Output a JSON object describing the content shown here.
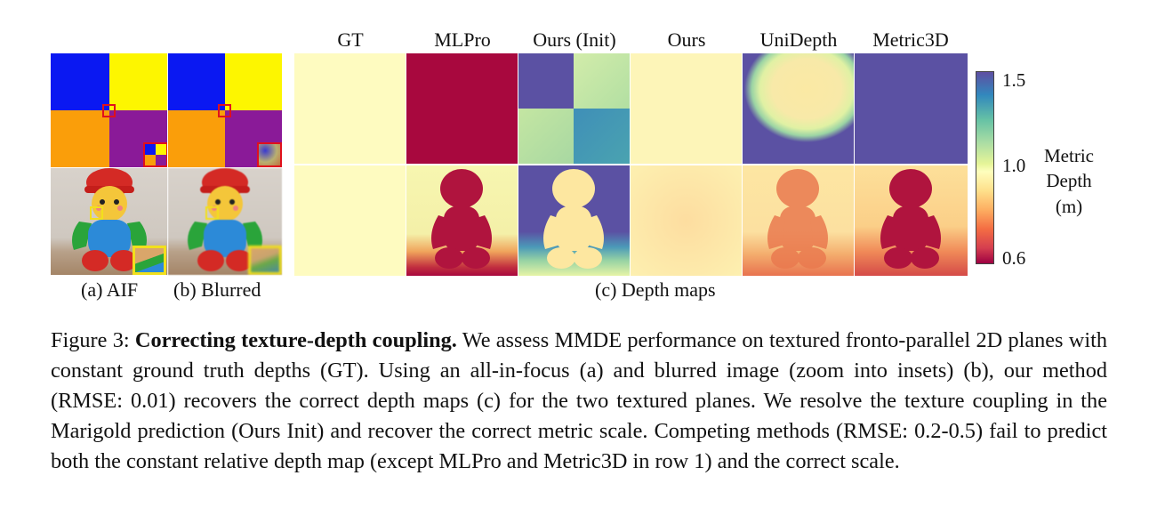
{
  "figure": {
    "column_headers": [
      "GT",
      "MLPro",
      "Ours (Init)",
      "Ours",
      "UniDepth",
      "Metric3D"
    ],
    "sublabels": {
      "aif": "(a) AIF",
      "blurred": "(b) Blurred",
      "depth": "(c) Depth maps"
    },
    "colorbar": {
      "ticks": [
        "1.5",
        "1.0",
        "0.6"
      ],
      "title_lines": [
        "Metric",
        "Depth",
        "(m)"
      ],
      "colormap": "Spectral",
      "range": [
        0.6,
        1.5
      ]
    },
    "inset_colors": {
      "row1": "#e0101c",
      "row2": "#f2e01c"
    }
  },
  "caption": {
    "label": "Figure 3:",
    "title": "Correcting texture-depth coupling.",
    "body": "We assess MMDE performance on textured fronto-parallel 2D planes with constant ground truth depths (GT). Using an all-in-focus (a) and blurred image (zoom into insets) (b), our method (RMSE: 0.01) recovers the correct depth maps (c) for the two textured planes. We resolve the texture coupling in the Marigold prediction (Ours Init) and recover the correct metric scale. Competing methods (RMSE: 0.2-0.5) fail to predict both the constant relative depth map (except MLPro and Metric3D in row 1) and the correct scale."
  }
}
